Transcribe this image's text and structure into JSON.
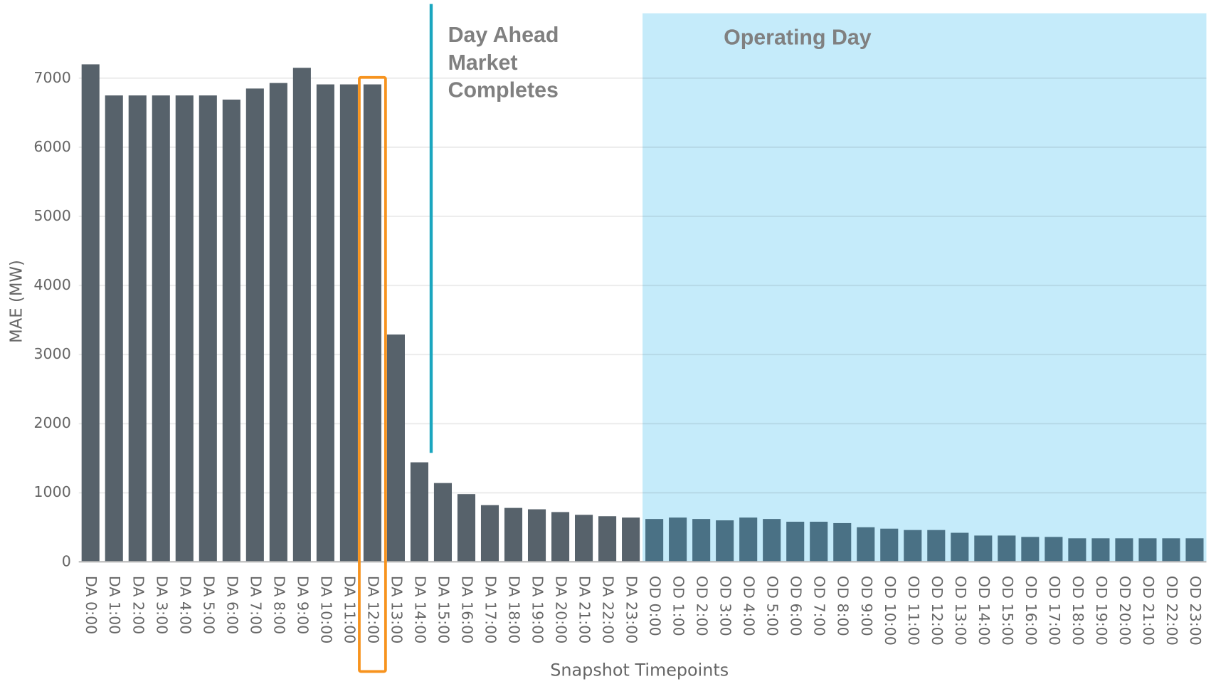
{
  "chart_data": {
    "type": "bar",
    "y_label": "MAE (MW)",
    "x_label": "Snapshot Timepoints",
    "categories": [
      "DA 0:00",
      "DA 1:00",
      "DA 2:00",
      "DA 3:00",
      "DA 4:00",
      "DA 5:00",
      "DA 6:00",
      "DA 7:00",
      "DA 8:00",
      "DA 9:00",
      "DA 10:00",
      "DA 11:00",
      "DA 12:00",
      "DA 13:00",
      "DA 14:00",
      "DA 15:00",
      "DA 16:00",
      "DA 17:00",
      "DA 18:00",
      "DA 19:00",
      "DA 20:00",
      "DA 21:00",
      "DA 22:00",
      "DA 23:00",
      "OD 0:00",
      "OD 1:00",
      "OD 2:00",
      "OD 3:00",
      "OD 4:00",
      "OD 5:00",
      "OD 6:00",
      "OD 7:00",
      "OD 8:00",
      "OD 9:00",
      "OD 10:00",
      "OD 11:00",
      "OD 12:00",
      "OD 13:00",
      "OD 14:00",
      "OD 15:00",
      "OD 16:00",
      "OD 17:00",
      "OD 18:00",
      "OD 19:00",
      "OD 20:00",
      "OD 21:00",
      "OD 22:00",
      "OD 23:00"
    ],
    "values": [
      7200,
      6750,
      6750,
      6750,
      6750,
      6750,
      6690,
      6850,
      6930,
      7150,
      6910,
      6910,
      6910,
      3290,
      1440,
      1140,
      980,
      820,
      780,
      760,
      720,
      680,
      660,
      640,
      620,
      640,
      620,
      600,
      640,
      620,
      580,
      580,
      560,
      500,
      480,
      460,
      460,
      420,
      380,
      380,
      360,
      360,
      340,
      340,
      340,
      340,
      340,
      340
    ],
    "color": "#57626b",
    "ylim": [
      0,
      7000
    ],
    "yticks": [
      0,
      1000,
      2000,
      3000,
      4000,
      5000,
      6000,
      7000
    ],
    "grid": true,
    "shaded_region": {
      "label": "Operating Day",
      "from": "OD 0:00",
      "color": "#c5ebfa",
      "bar_color": "#4a7185"
    },
    "marker_line": {
      "lines": [
        "Day Ahead",
        "Market",
        "Completes"
      ],
      "after": "DA 14:00",
      "color": "#1aa6bf"
    },
    "highlight": {
      "category": "DA 12:00",
      "color": "#f7931e"
    }
  }
}
